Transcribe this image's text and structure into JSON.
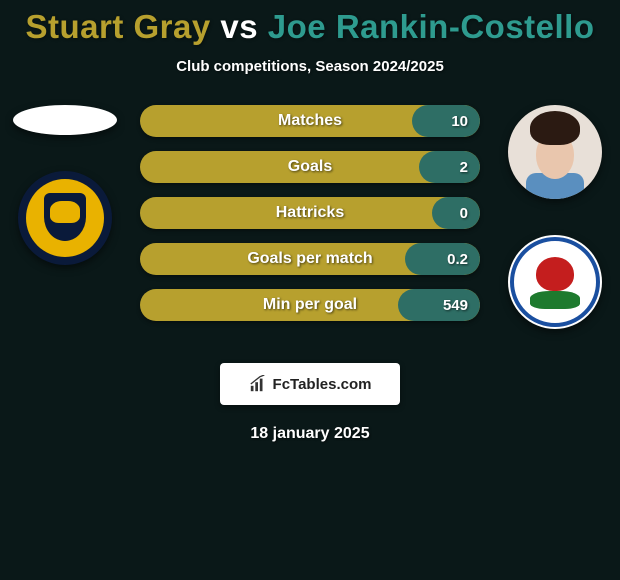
{
  "title": {
    "player1_name": "Stuart Gray",
    "vs_word": "vs",
    "player2_name": "Joe Rankin-Costello",
    "player1_color": "#b7a02e",
    "vs_color": "#ffffff",
    "player2_color": "#2e9b8f"
  },
  "subtitle": "Club competitions, Season 2024/2025",
  "colors": {
    "background": "#0a1818",
    "bar_left": "#b7a02e",
    "bar_right": "#2e6e65",
    "text_light": "#ffffff"
  },
  "left": {
    "player_icon": "oval-placeholder",
    "club_icon": "oxford-united"
  },
  "right": {
    "player_icon": "face-photo",
    "club_icon": "blackburn-rovers"
  },
  "stats": [
    {
      "label": "Matches",
      "left_value": "",
      "right_value": "10",
      "right_pct": 20
    },
    {
      "label": "Goals",
      "left_value": "",
      "right_value": "2",
      "right_pct": 18
    },
    {
      "label": "Hattricks",
      "left_value": "",
      "right_value": "0",
      "right_pct": 14
    },
    {
      "label": "Goals per match",
      "left_value": "",
      "right_value": "0.2",
      "right_pct": 22
    },
    {
      "label": "Min per goal",
      "left_value": "",
      "right_value": "549",
      "right_pct": 24
    }
  ],
  "site": {
    "icon": "bar-chart-icon",
    "text": "FcTables.com"
  },
  "date": "18 january 2025"
}
